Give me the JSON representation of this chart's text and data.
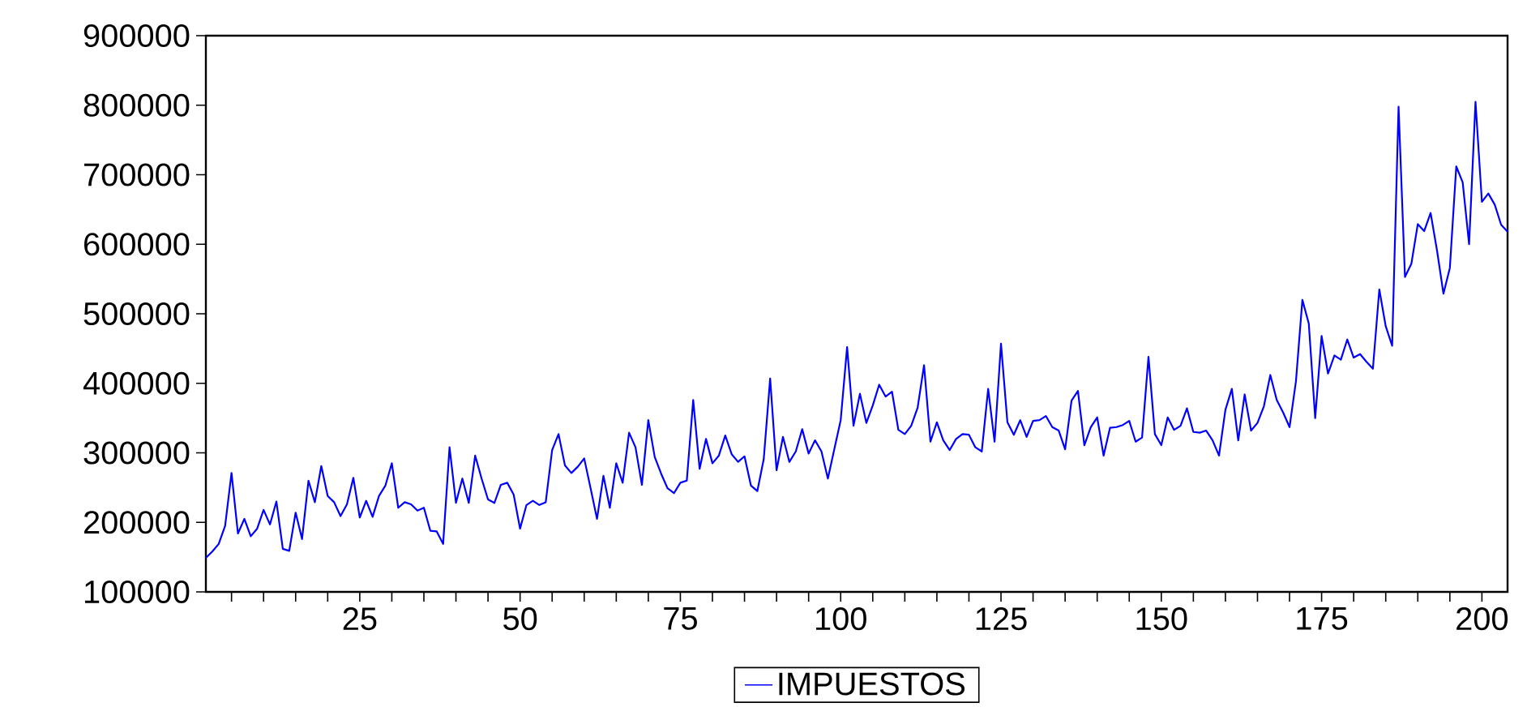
{
  "chart_data": {
    "type": "line",
    "x": [
      1,
      2,
      3,
      4,
      5,
      6,
      7,
      8,
      9,
      10,
      11,
      12,
      13,
      14,
      15,
      16,
      17,
      18,
      19,
      20,
      21,
      22,
      23,
      24,
      25,
      26,
      27,
      28,
      29,
      30,
      31,
      32,
      33,
      34,
      35,
      36,
      37,
      38,
      39,
      40,
      41,
      42,
      43,
      44,
      45,
      46,
      47,
      48,
      49,
      50,
      51,
      52,
      53,
      54,
      55,
      56,
      57,
      58,
      59,
      60,
      61,
      62,
      63,
      64,
      65,
      66,
      67,
      68,
      69,
      70,
      71,
      72,
      73,
      74,
      75,
      76,
      77,
      78,
      79,
      80,
      81,
      82,
      83,
      84,
      85,
      86,
      87,
      88,
      89,
      90,
      91,
      92,
      93,
      94,
      95,
      96,
      97,
      98,
      99,
      100,
      101,
      102,
      103,
      104,
      105,
      106,
      107,
      108,
      109,
      110,
      111,
      112,
      113,
      114,
      115,
      116,
      117,
      118,
      119,
      120,
      121,
      122,
      123,
      124,
      125,
      126,
      127,
      128,
      129,
      130,
      131,
      132,
      133,
      134,
      135,
      136,
      137,
      138,
      139,
      140,
      141,
      142,
      143,
      144,
      145,
      146,
      147,
      148,
      149,
      150,
      151,
      152,
      153,
      154,
      155,
      156,
      157,
      158,
      159,
      160,
      161,
      162,
      163,
      164,
      165,
      166,
      167,
      168,
      169,
      170,
      171,
      172,
      173,
      174,
      175,
      176,
      177,
      178,
      179,
      180,
      181,
      182,
      183,
      184,
      185,
      186,
      187,
      188,
      189,
      190,
      191,
      192,
      193,
      194,
      195,
      196,
      197,
      198,
      199,
      200,
      201,
      202,
      203,
      204
    ],
    "series": [
      {
        "name": "IMPUESTOS",
        "color": "#0000ff",
        "values": [
          149000,
          158000,
          169000,
          195000,
          271000,
          184000,
          205000,
          180000,
          191000,
          218000,
          197000,
          230000,
          162000,
          159000,
          214000,
          176000,
          260000,
          229000,
          281000,
          238000,
          229000,
          209000,
          226000,
          264000,
          207000,
          231000,
          208000,
          238000,
          253000,
          285000,
          221000,
          229000,
          226000,
          217000,
          221000,
          188000,
          187000,
          169000,
          308000,
          228000,
          263000,
          228000,
          296000,
          263000,
          233000,
          228000,
          254000,
          257000,
          240000,
          191000,
          225000,
          231000,
          225000,
          229000,
          304000,
          327000,
          282000,
          271000,
          280000,
          292000,
          249000,
          205000,
          267000,
          221000,
          285000,
          257000,
          329000,
          308000,
          254000,
          347000,
          294000,
          270000,
          249000,
          242000,
          257000,
          260000,
          376000,
          277000,
          320000,
          285000,
          296000,
          325000,
          298000,
          287000,
          295000,
          253000,
          245000,
          291000,
          407000,
          275000,
          323000,
          287000,
          302000,
          334000,
          299000,
          318000,
          302000,
          263000,
          305000,
          347000,
          452000,
          339000,
          385000,
          343000,
          368000,
          398000,
          381000,
          388000,
          333000,
          327000,
          339000,
          365000,
          426000,
          316000,
          344000,
          318000,
          304000,
          320000,
          327000,
          326000,
          308000,
          302000,
          392000,
          316000,
          457000,
          344000,
          326000,
          347000,
          323000,
          346000,
          347000,
          353000,
          337000,
          332000,
          305000,
          375000,
          389000,
          311000,
          337000,
          351000,
          296000,
          336000,
          337000,
          340000,
          346000,
          316000,
          322000,
          438000,
          327000,
          311000,
          351000,
          333000,
          339000,
          364000,
          330000,
          329000,
          332000,
          318000,
          296000,
          362000,
          392000,
          318000,
          384000,
          332000,
          343000,
          367000,
          412000,
          376000,
          358000,
          337000,
          403000,
          520000,
          486000,
          350000,
          468000,
          414000,
          440000,
          434000,
          463000,
          437000,
          442000,
          431000,
          421000,
          535000,
          482000,
          454000,
          798000,
          553000,
          572000,
          629000,
          619000,
          645000,
          591000,
          529000,
          566000,
          712000,
          689000,
          600000,
          805000,
          661000,
          673000,
          657000,
          628000,
          618000
        ]
      }
    ],
    "xlim": [
      1,
      204
    ],
    "ylim": [
      100000,
      900000
    ],
    "yticks": [
      100000,
      200000,
      300000,
      400000,
      500000,
      600000,
      700000,
      800000,
      900000
    ],
    "xticks": [
      {
        "value": 5,
        "label": null
      },
      {
        "value": 10,
        "label": null
      },
      {
        "value": 15,
        "label": null
      },
      {
        "value": 20,
        "label": null
      },
      25,
      {
        "value": 30,
        "label": null
      },
      {
        "value": 35,
        "label": null
      },
      {
        "value": 40,
        "label": null
      },
      {
        "value": 45,
        "label": null
      },
      50,
      {
        "value": 55,
        "label": null
      },
      {
        "value": 60,
        "label": null
      },
      {
        "value": 65,
        "label": null
      },
      {
        "value": 70,
        "label": null
      },
      75,
      {
        "value": 80,
        "label": null
      },
      {
        "value": 85,
        "label": null
      },
      {
        "value": 90,
        "label": null
      },
      {
        "value": 95,
        "label": null
      },
      100,
      {
        "value": 105,
        "label": null
      },
      {
        "value": 110,
        "label": null
      },
      {
        "value": 115,
        "label": null
      },
      {
        "value": 120,
        "label": null
      },
      125,
      {
        "value": 130,
        "label": null
      },
      {
        "value": 135,
        "label": null
      },
      {
        "value": 140,
        "label": null
      },
      {
        "value": 145,
        "label": null
      },
      150,
      {
        "value": 155,
        "label": null
      },
      {
        "value": 160,
        "label": null
      },
      {
        "value": 165,
        "label": null
      },
      {
        "value": 170,
        "label": null
      },
      175,
      {
        "value": 180,
        "label": null
      },
      {
        "value": 185,
        "label": null
      },
      {
        "value": 190,
        "label": null
      },
      {
        "value": 195,
        "label": null
      },
      200
    ],
    "legend": "bottom",
    "grid": false,
    "line_style": "solid"
  }
}
